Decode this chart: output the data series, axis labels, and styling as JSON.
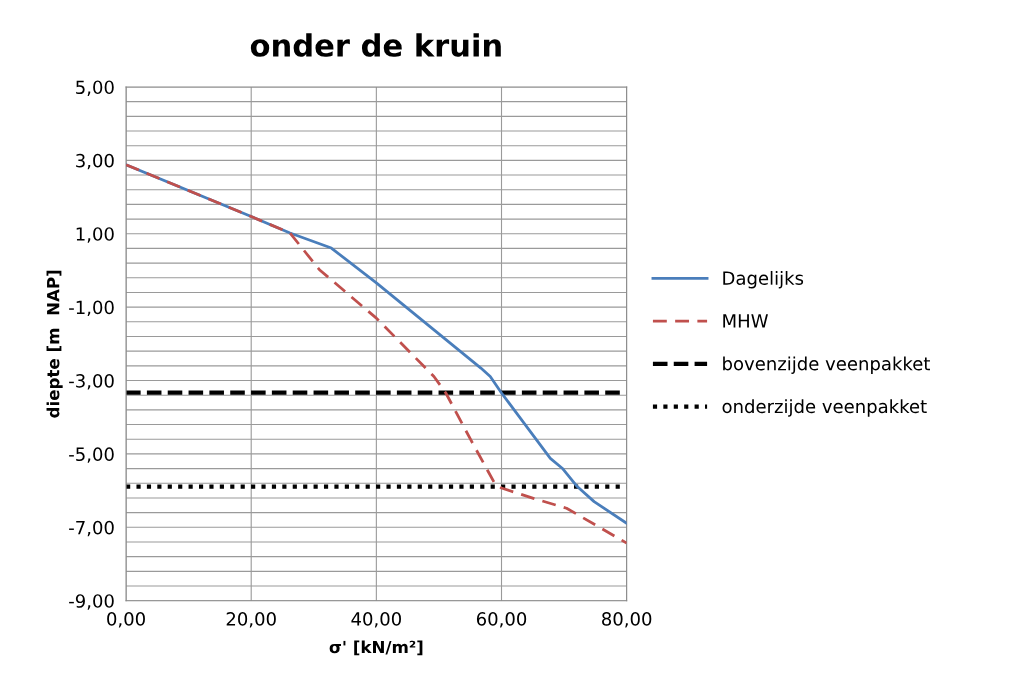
{
  "chart_data": {
    "type": "line",
    "title": "onder de kruin",
    "xlabel": "σ' [kN/m²]",
    "ylabel": "diepte [m  NAP]",
    "xlim": [
      0,
      80
    ],
    "ylim": [
      -9,
      5
    ],
    "xticks": [
      {
        "value": 0,
        "label": "0,00"
      },
      {
        "value": 20,
        "label": "20,00"
      },
      {
        "value": 40,
        "label": "40,00"
      },
      {
        "value": 60,
        "label": "60,00"
      },
      {
        "value": 80,
        "label": "80,00"
      }
    ],
    "yticks": [
      {
        "value": -9,
        "label": "-9,00"
      },
      {
        "value": -8.6,
        "label": null
      },
      {
        "value": -8.2,
        "label": null
      },
      {
        "value": -7.8,
        "label": null
      },
      {
        "value": -7.4,
        "label": null
      },
      {
        "value": -7,
        "label": "-7,00"
      },
      {
        "value": -6.6,
        "label": null
      },
      {
        "value": -6.2,
        "label": null
      },
      {
        "value": -5.8,
        "label": null
      },
      {
        "value": -5.4,
        "label": null
      },
      {
        "value": -5,
        "label": "-5,00"
      },
      {
        "value": -4.6,
        "label": null
      },
      {
        "value": -4.2,
        "label": null
      },
      {
        "value": -3.8,
        "label": null
      },
      {
        "value": -3.4,
        "label": null
      },
      {
        "value": -3,
        "label": "-3,00"
      },
      {
        "value": -2.6,
        "label": null
      },
      {
        "value": -2.2,
        "label": null
      },
      {
        "value": -1.8,
        "label": null
      },
      {
        "value": -1.4,
        "label": null
      },
      {
        "value": -1,
        "label": "-1,00"
      },
      {
        "value": -0.6,
        "label": null
      },
      {
        "value": -0.2,
        "label": null
      },
      {
        "value": 0.2,
        "label": null
      },
      {
        "value": 0.6,
        "label": null
      },
      {
        "value": 1,
        "label": "1,00"
      },
      {
        "value": 1.4,
        "label": null
      },
      {
        "value": 1.8,
        "label": null
      },
      {
        "value": 2.2,
        "label": null
      },
      {
        "value": 2.6,
        "label": null
      },
      {
        "value": 3,
        "label": "3,00"
      },
      {
        "value": 3.4,
        "label": null
      },
      {
        "value": 3.8,
        "label": null
      },
      {
        "value": 4.2,
        "label": null
      },
      {
        "value": 4.6,
        "label": null
      },
      {
        "value": 5,
        "label": "5,00"
      }
    ],
    "grid": true,
    "legend": "right",
    "series": [
      {
        "name": "Dagelijks",
        "color": "#4a7ebb",
        "line_style": "solid",
        "x": [
          0,
          20,
          26.2,
          32.8,
          40,
          56.7,
          58.2,
          60,
          67.8,
          69.7,
          72.1,
          74.8,
          80
        ],
        "values": [
          2.88,
          1.47,
          1.02,
          0.61,
          -0.34,
          -2.66,
          -2.89,
          -3.34,
          -5.12,
          -5.39,
          -5.89,
          -6.3,
          -6.89
        ]
      },
      {
        "name": "MHW",
        "color": "#c0504d",
        "line_style": "dashed",
        "x": [
          0,
          20,
          26.2,
          30.9,
          40,
          49.2,
          51.1,
          55.1,
          58.9,
          60,
          65.1,
          70.4,
          80
        ],
        "values": [
          2.88,
          1.47,
          1.02,
          0.02,
          -1.3,
          -2.89,
          -3.34,
          -4.62,
          -5.8,
          -5.93,
          -6.21,
          -6.48,
          -7.43
        ]
      }
    ],
    "ref_lines": [
      {
        "axis": "y",
        "value": -3.33,
        "label": "bovenzijde veenpakket",
        "color": "#000000",
        "line_style": "dashed"
      },
      {
        "axis": "y",
        "value": -5.89,
        "label": "onderzijde veenpakket",
        "color": "#000000",
        "line_style": "dotted"
      }
    ]
  }
}
